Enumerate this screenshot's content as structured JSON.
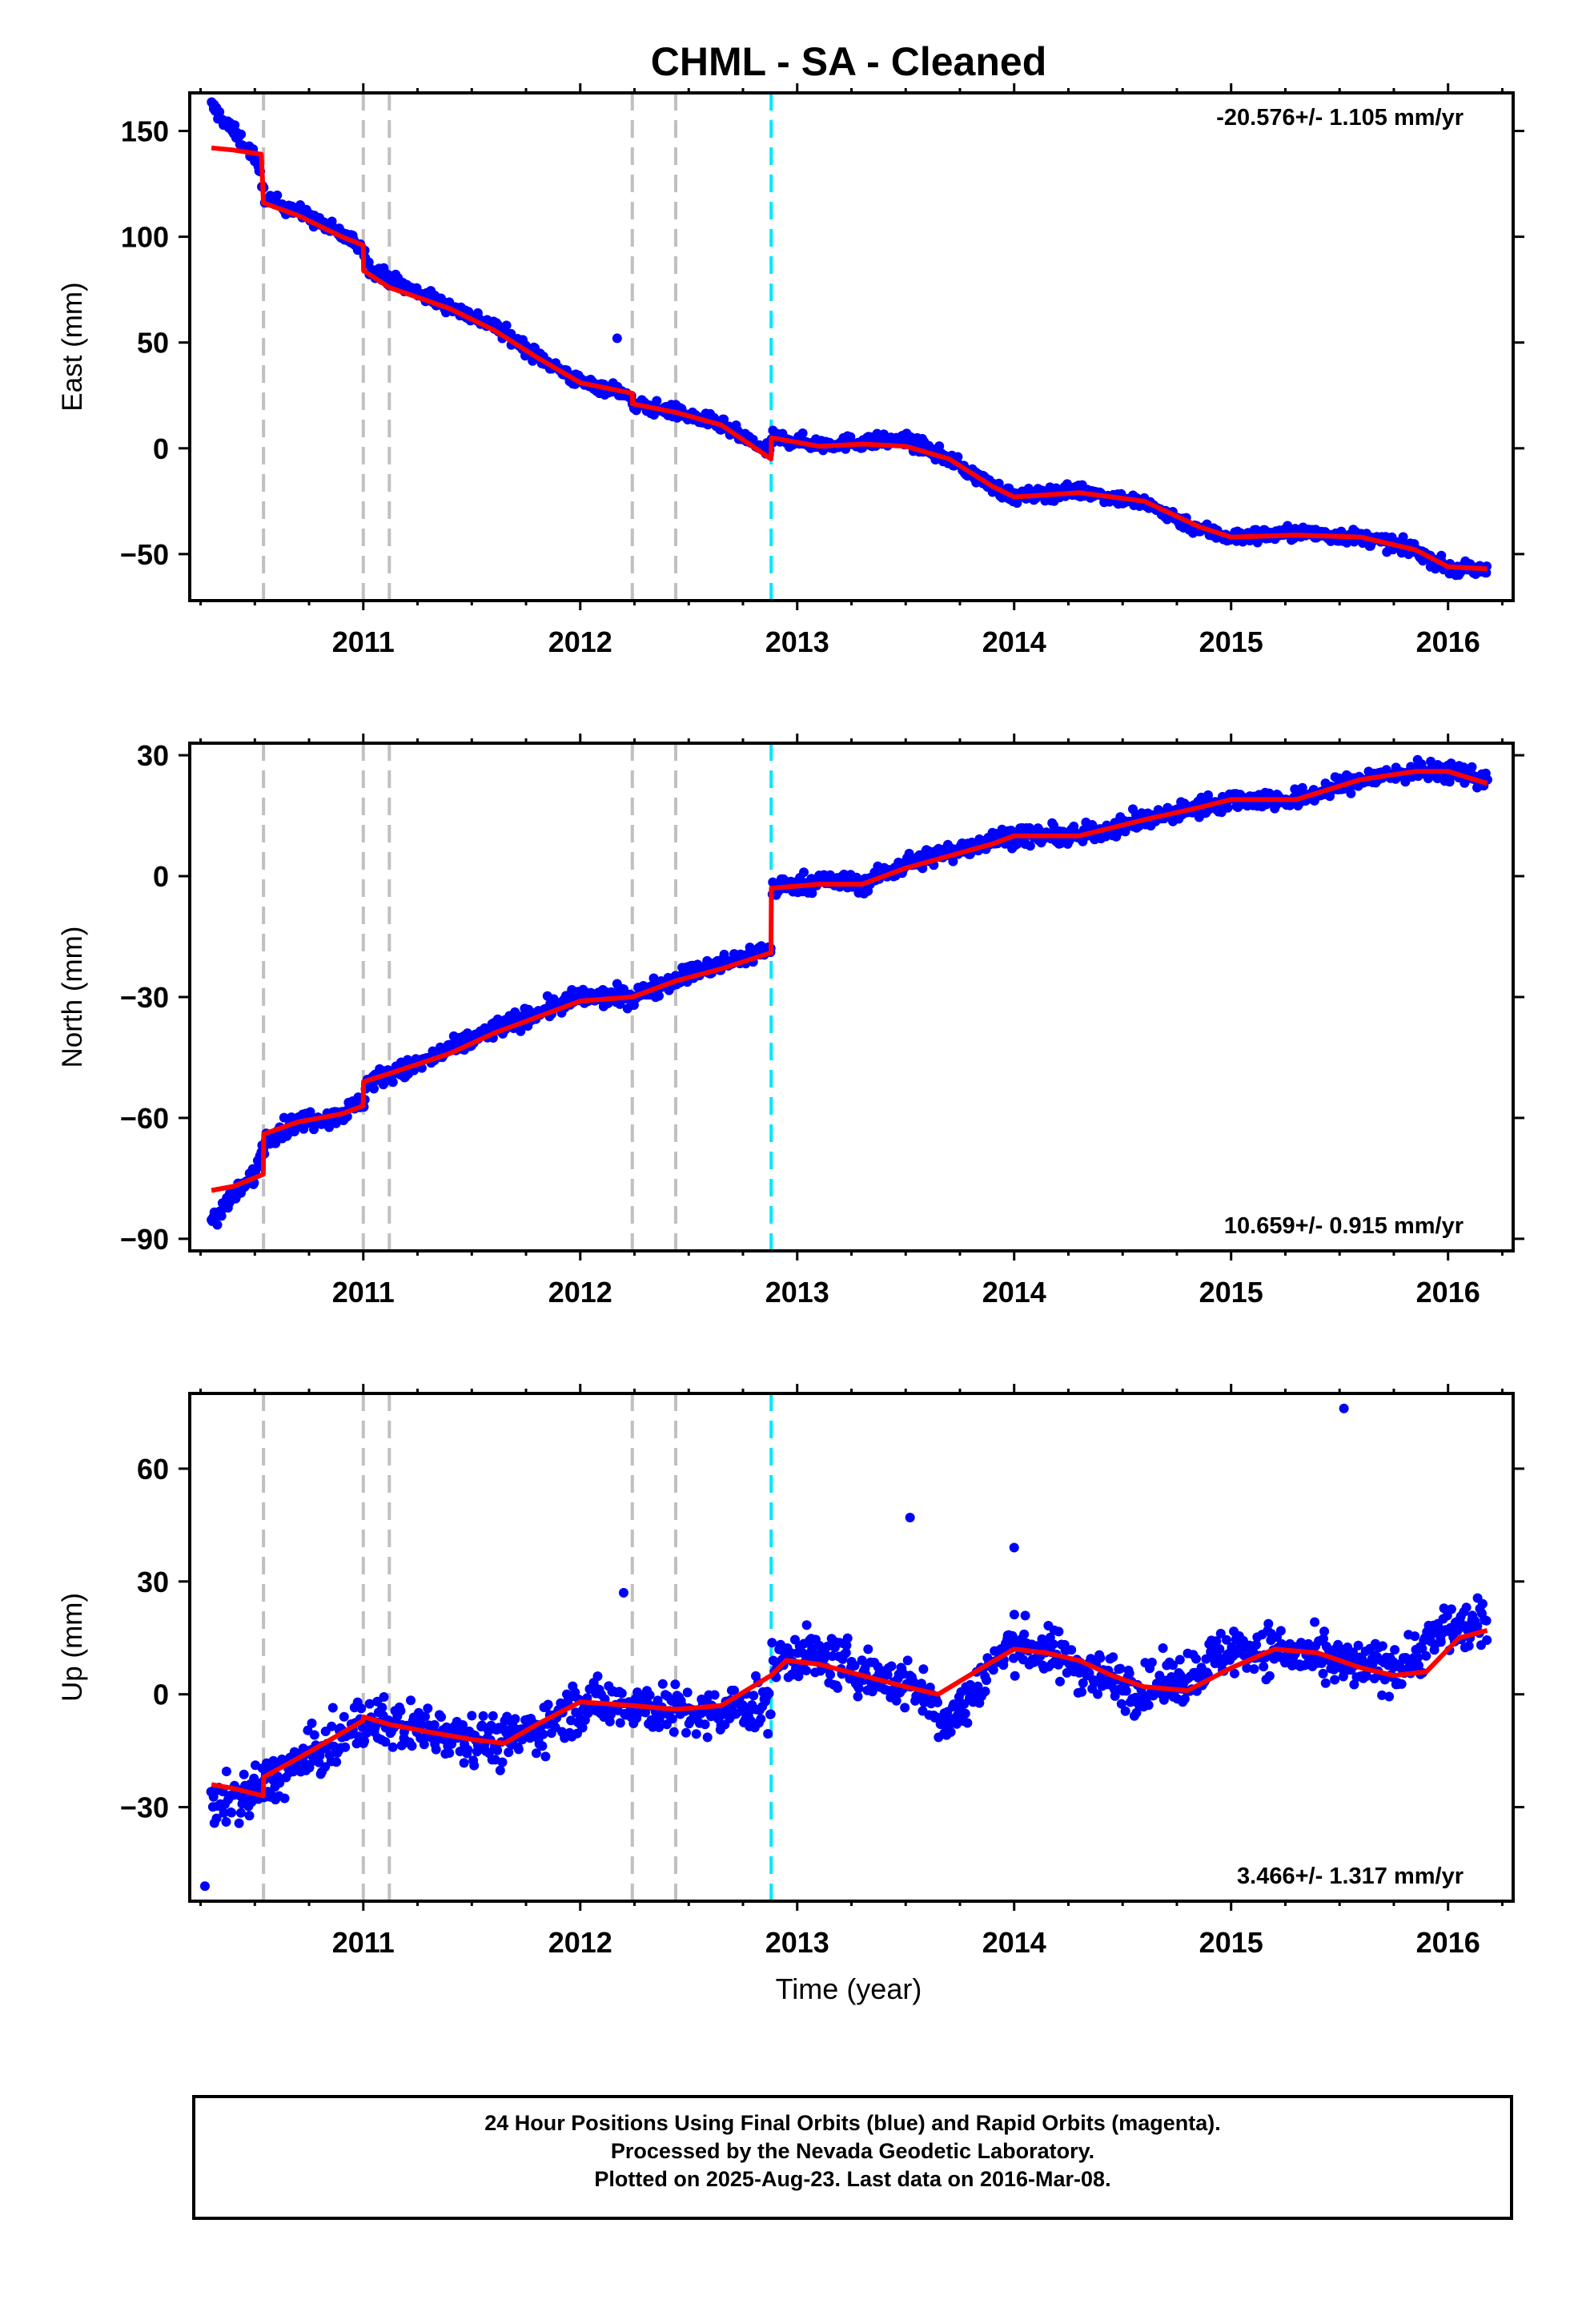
{
  "title": "CHML  - SA - Cleaned",
  "x_axis_label": "Time (year)",
  "footer": {
    "line1": "24 Hour Positions Using Final Orbits (blue) and Rapid Orbits (magenta).",
    "line2": "Processed by the Nevada Geodetic Laboratory.",
    "line3": "Plotted on 2025-Aug-23. Last data on 2016-Mar-08."
  },
  "colors": {
    "final_orbits": "#0000ff",
    "model": "#ff0000",
    "equipment_change": "#c0c0c0",
    "earthquake": "#00e5ff"
  },
  "chart_data": [
    {
      "type": "scatter",
      "component": "East",
      "ylabel": "East (mm)",
      "xlim": [
        2010.2,
        2016.3
      ],
      "ylim": [
        -72,
        168
      ],
      "x_ticks": [
        2011,
        2012,
        2013,
        2014,
        2015,
        2016
      ],
      "y_ticks": [
        -50,
        0,
        50,
        100,
        150
      ],
      "rate_label": "-20.576+/- 1.105 mm/yr",
      "rate_position": "top-right",
      "grid": false,
      "discontinuities": [
        2010.54,
        2011.0,
        2011.12,
        2012.24,
        2012.44
      ],
      "earthquakes": [
        2012.88
      ],
      "series": [
        {
          "name": "Final Orbits",
          "style": "points",
          "x": [
            2010.3,
            2010.4,
            2010.5,
            2010.55,
            2010.7,
            2010.9,
            2011.0,
            2011.02,
            2011.2,
            2011.4,
            2011.6,
            2011.8,
            2012.0,
            2012.2,
            2012.24,
            2012.45,
            2012.65,
            2012.87,
            2012.89,
            2013.1,
            2013.3,
            2013.5,
            2013.7,
            2013.9,
            2014.0,
            2014.3,
            2014.6,
            2014.85,
            2015.0,
            2015.3,
            2015.6,
            2015.85,
            2016.0,
            2016.18
          ],
          "y": [
            162,
            150,
            138,
            118,
            112,
            101,
            95,
            86,
            76,
            67,
            58,
            44,
            31,
            27,
            21,
            17,
            11,
            -2,
            5,
            2,
            3,
            4,
            -5,
            -18,
            -23,
            -20,
            -26,
            -38,
            -42,
            -40,
            -42,
            -48,
            -57,
            -58
          ]
        },
        {
          "name": "Model",
          "style": "line",
          "x": [
            2010.3,
            2010.4,
            2010.53,
            2010.54,
            2010.7,
            2010.9,
            2011.0,
            2011.001,
            2011.12,
            2011.4,
            2011.6,
            2011.8,
            2012.0,
            2012.24,
            2012.241,
            2012.44,
            2012.65,
            2012.879,
            2012.881,
            2013.1,
            2013.3,
            2013.5,
            2013.7,
            2013.9,
            2014.0,
            2014.3,
            2014.6,
            2014.85,
            2015.0,
            2015.3,
            2015.6,
            2015.85,
            2016.0,
            2016.18
          ],
          "y": [
            142,
            141,
            139,
            116,
            110,
            100,
            96,
            84,
            76,
            66,
            56,
            43,
            31,
            26,
            21,
            17,
            11,
            -5,
            5,
            1,
            2,
            1,
            -5,
            -18,
            -23,
            -21,
            -25,
            -37,
            -42,
            -41,
            -42,
            -48,
            -56,
            -57
          ]
        },
        {
          "name": "Outlier",
          "style": "points",
          "x": [
            2012.17
          ],
          "y": [
            52
          ]
        }
      ]
    },
    {
      "type": "scatter",
      "component": "North",
      "ylabel": "North (mm)",
      "xlim": [
        2010.2,
        2016.3
      ],
      "ylim": [
        -93,
        33
      ],
      "x_ticks": [
        2011,
        2012,
        2013,
        2014,
        2015,
        2016
      ],
      "y_ticks": [
        -90,
        -60,
        -30,
        0,
        30
      ],
      "rate_label": "10.659+/- 0.915 mm/yr",
      "rate_position": "bottom-right",
      "grid": false,
      "discontinuities": [
        2010.54,
        2011.0,
        2011.12,
        2012.24,
        2012.44
      ],
      "earthquakes": [
        2012.88
      ],
      "series": [
        {
          "name": "Final Orbits",
          "style": "points",
          "x": [
            2010.3,
            2010.4,
            2010.5,
            2010.55,
            2010.7,
            2010.9,
            2011.0,
            2011.02,
            2011.2,
            2011.4,
            2011.6,
            2011.8,
            2012.0,
            2012.24,
            2012.45,
            2012.65,
            2012.87,
            2012.89,
            2013.1,
            2013.3,
            2013.5,
            2013.7,
            2013.9,
            2014.0,
            2014.3,
            2014.6,
            2014.85,
            2015.0,
            2015.3,
            2015.6,
            2015.85,
            2016.0,
            2016.18
          ],
          "y": [
            -85,
            -80,
            -74,
            -65,
            -61,
            -59,
            -56,
            -51,
            -48,
            -43,
            -38,
            -34,
            -30,
            -30,
            -25,
            -22,
            -18,
            -3,
            -1,
            -2,
            3,
            6,
            9,
            10,
            10,
            14,
            17,
            19,
            19,
            24,
            26,
            26,
            24
          ]
        },
        {
          "name": "Model",
          "style": "line",
          "x": [
            2010.3,
            2010.4,
            2010.539,
            2010.541,
            2010.7,
            2010.9,
            2010.999,
            2011.001,
            2011.12,
            2011.4,
            2011.6,
            2011.8,
            2012.0,
            2012.24,
            2012.44,
            2012.65,
            2012.879,
            2012.881,
            2013.1,
            2013.3,
            2013.5,
            2013.7,
            2013.9,
            2014.0,
            2014.3,
            2014.6,
            2014.85,
            2015.0,
            2015.3,
            2015.6,
            2015.85,
            2016.0,
            2016.18
          ],
          "y": [
            -78,
            -77,
            -74,
            -64,
            -61,
            -59,
            -57,
            -51,
            -49,
            -44,
            -39,
            -35,
            -31,
            -30,
            -26,
            -23,
            -19,
            -3,
            -2,
            -2,
            2,
            5,
            8,
            10,
            10,
            14,
            17,
            19,
            19,
            24,
            26,
            26,
            23
          ]
        }
      ]
    },
    {
      "type": "scatter",
      "component": "Up",
      "ylabel": "Up (mm)",
      "xlim": [
        2010.2,
        2016.3
      ],
      "ylim": [
        -55,
        80
      ],
      "x_ticks": [
        2011,
        2012,
        2013,
        2014,
        2015,
        2016
      ],
      "y_ticks": [
        -30,
        0,
        30,
        60
      ],
      "rate_label": "3.466+/- 1.317 mm/yr",
      "rate_position": "bottom-right",
      "grid": false,
      "discontinuities": [
        2010.54,
        2011.0,
        2011.12,
        2012.24,
        2012.44
      ],
      "earthquakes": [
        2012.88
      ],
      "series": [
        {
          "name": "Final Orbits",
          "style": "points",
          "x": [
            2010.3,
            2010.4,
            2010.5,
            2010.6,
            2010.75,
            2010.9,
            2011.0,
            2011.1,
            2011.3,
            2011.5,
            2011.65,
            2011.8,
            2012.0,
            2012.2,
            2012.4,
            2012.6,
            2012.75,
            2012.9,
            2013.0,
            2013.2,
            2013.4,
            2013.55,
            2013.7,
            2013.9,
            2014.0,
            2014.2,
            2014.4,
            2014.6,
            2014.8,
            2015.0,
            2015.2,
            2015.4,
            2015.6,
            2015.8,
            2016.0,
            2016.18
          ],
          "y": [
            -30,
            -28,
            -26,
            -22,
            -17,
            -12,
            -7,
            -8,
            -9,
            -11,
            -13,
            -9,
            -3,
            -2,
            -4,
            -6,
            -3,
            8,
            11,
            8,
            4,
            2,
            -8,
            8,
            14,
            10,
            5,
            1,
            5,
            12,
            12,
            9,
            7,
            8,
            18,
            18
          ]
        },
        {
          "name": "Model",
          "style": "line",
          "x": [
            2010.3,
            2010.4,
            2010.539,
            2010.541,
            2010.7,
            2010.85,
            2010.999,
            2011.001,
            2011.12,
            2011.3,
            2011.5,
            2011.65,
            2011.8,
            2012.0,
            2012.24,
            2012.44,
            2012.65,
            2012.879,
            2012.95,
            2013.1,
            2013.3,
            2013.5,
            2013.65,
            2013.85,
            2014.0,
            2014.15,
            2014.3,
            2014.45,
            2014.6,
            2014.8,
            2015.0,
            2015.2,
            2015.4,
            2015.6,
            2015.75,
            2015.9,
            2016.05,
            2016.18
          ],
          "y": [
            -24,
            -25,
            -27,
            -22,
            -17,
            -12,
            -7,
            -6,
            -8,
            -10,
            -12,
            -13,
            -8,
            -2,
            -3,
            -4,
            -3,
            5,
            9,
            8,
            5,
            2,
            0,
            7,
            12,
            11,
            9,
            5,
            2,
            1,
            7,
            12,
            11,
            7,
            5,
            6,
            15,
            17
          ]
        },
        {
          "name": "Outlier",
          "style": "points",
          "x": [
            2013.52,
            2014.0,
            2015.52,
            2010.27,
            2012.2
          ],
          "y": [
            47,
            39,
            76,
            -51,
            27
          ]
        }
      ]
    }
  ]
}
